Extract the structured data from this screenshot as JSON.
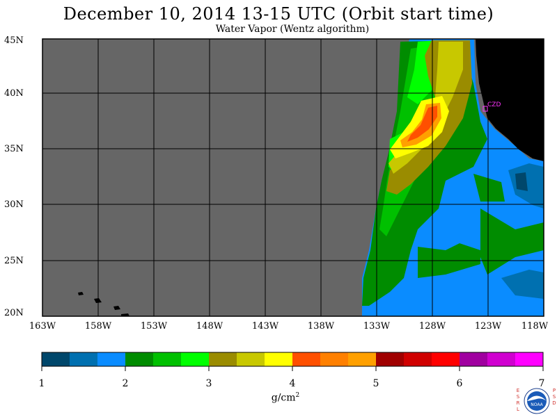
{
  "header": {
    "title": "December 10, 2014  13-15 UTC  (Orbit start time)",
    "subtitle": "Water Vapor (Wentz algorithm)"
  },
  "map": {
    "background_color": "#666666",
    "land_color": "#000000",
    "lat_labels": [
      "45N",
      "40N",
      "35N",
      "30N",
      "25N",
      "20N"
    ],
    "lon_labels": [
      "163W",
      "158W",
      "153W",
      "148W",
      "143W",
      "138W",
      "133W",
      "128W",
      "123W",
      "118W"
    ],
    "station_label": "CZD"
  },
  "colorbar": {
    "colors": [
      "#00476b",
      "#0070b0",
      "#0a8cff",
      "#008c00",
      "#00c000",
      "#00ff00",
      "#9a8c00",
      "#c8c800",
      "#ffff00",
      "#ff5000",
      "#ff8000",
      "#ffa000",
      "#a00000",
      "#d00000",
      "#ff0000",
      "#a000a0",
      "#d000d0",
      "#ff00ff"
    ],
    "tick_labels": [
      "1",
      "2",
      "3",
      "4",
      "5",
      "6",
      "7"
    ],
    "units": "g/cm",
    "units_exp": "2"
  },
  "logo": {
    "left_letters": [
      "E",
      "S",
      "R",
      "L"
    ],
    "right_letters": [
      "P",
      "S",
      "D"
    ],
    "center_text": "NOAA"
  }
}
